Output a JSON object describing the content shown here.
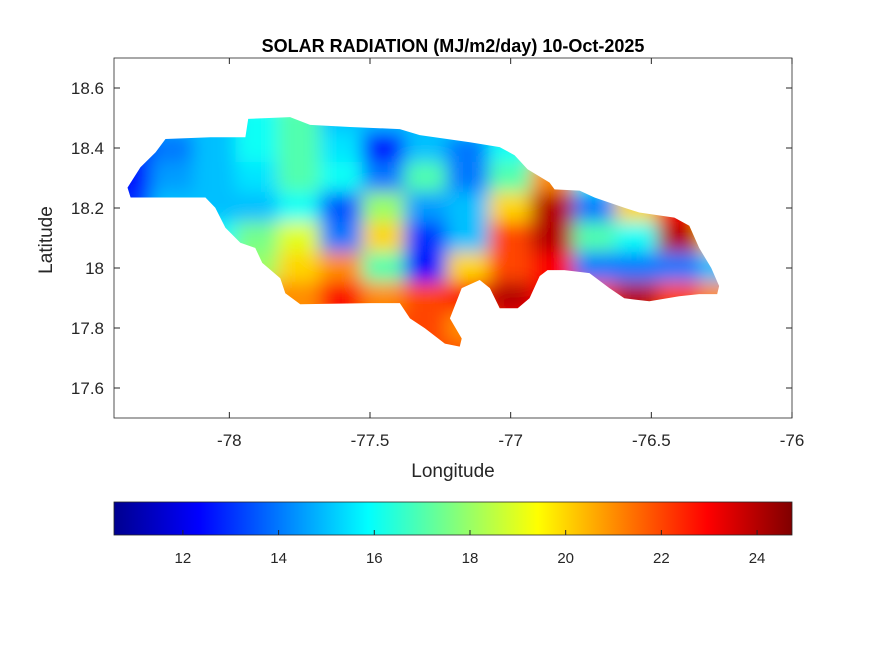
{
  "chart_data": {
    "type": "heatmap",
    "title": "SOLAR RADIATION (MJ/m2/day) 10-Oct-2025",
    "xlabel": "Longitude",
    "ylabel": "Latitude",
    "xlim": [
      -78.41,
      -76.0
    ],
    "ylim": [
      17.5,
      18.7
    ],
    "xticks": [
      -78,
      -77.5,
      -77,
      -76.5,
      -76
    ],
    "xtick_labels": [
      "-78",
      "-77.5",
      "-77",
      "-76.5",
      "-76"
    ],
    "yticks": [
      17.6,
      17.8,
      18.0,
      18.2,
      18.4,
      18.6
    ],
    "ytick_labels": [
      "17.6",
      "17.8",
      "18",
      "18.2",
      "18.4",
      "18.6"
    ],
    "grid": false,
    "colormap": "jet",
    "clim": [
      10.56,
      24.73
    ],
    "colorbar": {
      "location": "bottom",
      "ticks": [
        12,
        14,
        16,
        18,
        20,
        22,
        24
      ],
      "tick_labels": [
        "12",
        "14",
        "16",
        "18",
        "20",
        "22",
        "24"
      ]
    },
    "grid_lon": [
      -78.35,
      -78.2,
      -78.05,
      -77.9,
      -77.75,
      -77.6,
      -77.45,
      -77.3,
      -77.15,
      -77.0,
      -76.85,
      -76.7,
      -76.55,
      -76.4,
      -76.25
    ],
    "grid_lat": [
      18.5,
      18.4,
      18.3,
      18.2,
      18.1,
      18.0,
      17.9,
      17.8,
      17.7
    ],
    "values": [
      [
        15,
        15,
        15,
        16,
        17,
        15,
        15,
        15,
        16,
        16,
        16,
        16,
        16,
        16,
        16
      ],
      [
        13,
        14,
        15,
        16,
        17,
        15.5,
        12.5,
        15,
        14,
        16,
        17,
        16,
        16,
        16,
        16
      ],
      [
        12.5,
        14.5,
        15,
        15.5,
        17,
        16,
        14,
        17,
        14,
        17,
        21,
        16,
        18,
        16,
        16
      ],
      [
        13,
        15,
        15,
        15,
        16,
        13.5,
        18,
        14.5,
        15,
        20,
        24,
        14,
        20,
        23,
        20
      ],
      [
        14,
        15,
        16,
        17.5,
        19,
        14,
        20,
        13,
        15,
        22,
        24,
        17,
        16,
        24,
        20
      ],
      [
        15,
        16,
        17,
        18,
        20,
        21,
        17,
        12.5,
        20,
        22,
        23,
        14,
        14,
        14,
        15
      ],
      [
        17,
        18,
        19,
        21,
        21,
        23,
        21,
        22,
        23,
        24,
        23,
        22,
        24,
        22,
        21
      ],
      [
        21,
        21,
        21,
        21,
        21,
        22,
        22,
        22,
        21,
        23,
        23,
        22,
        22,
        22,
        21
      ],
      [
        21,
        21,
        21,
        21,
        21,
        21,
        21,
        22,
        22,
        22,
        22,
        22,
        22,
        22,
        21
      ]
    ],
    "outline": [
      [
        -78.362,
        18.268
      ],
      [
        -78.316,
        18.336
      ],
      [
        -78.262,
        18.386
      ],
      [
        -78.227,
        18.43
      ],
      [
        -78.067,
        18.436
      ],
      [
        -77.943,
        18.436
      ],
      [
        -77.933,
        18.497
      ],
      [
        -77.784,
        18.503
      ],
      [
        -77.713,
        18.477
      ],
      [
        -77.571,
        18.47
      ],
      [
        -77.394,
        18.463
      ],
      [
        -77.323,
        18.443
      ],
      [
        -77.145,
        18.419
      ],
      [
        -77.039,
        18.403
      ],
      [
        -76.986,
        18.376
      ],
      [
        -76.94,
        18.329
      ],
      [
        -76.862,
        18.285
      ],
      [
        -76.844,
        18.262
      ],
      [
        -76.755,
        18.258
      ],
      [
        -76.702,
        18.235
      ],
      [
        -76.596,
        18.201
      ],
      [
        -76.543,
        18.185
      ],
      [
        -76.418,
        18.168
      ],
      [
        -76.365,
        18.141
      ],
      [
        -76.33,
        18.067
      ],
      [
        -76.287,
        18.0
      ],
      [
        -76.259,
        17.94
      ],
      [
        -76.266,
        17.913
      ],
      [
        -76.33,
        17.913
      ],
      [
        -76.401,
        17.906
      ],
      [
        -76.507,
        17.889
      ],
      [
        -76.596,
        17.899
      ],
      [
        -76.649,
        17.933
      ],
      [
        -76.72,
        17.983
      ],
      [
        -76.809,
        17.993
      ],
      [
        -76.869,
        17.993
      ],
      [
        -76.897,
        17.973
      ],
      [
        -76.933,
        17.899
      ],
      [
        -76.975,
        17.866
      ],
      [
        -77.039,
        17.866
      ],
      [
        -77.074,
        17.933
      ],
      [
        -77.11,
        17.96
      ],
      [
        -77.174,
        17.933
      ],
      [
        -77.216,
        17.832
      ],
      [
        -77.174,
        17.765
      ],
      [
        -77.181,
        17.738
      ],
      [
        -77.234,
        17.748
      ],
      [
        -77.305,
        17.799
      ],
      [
        -77.358,
        17.832
      ],
      [
        -77.394,
        17.883
      ],
      [
        -77.5,
        17.883
      ],
      [
        -77.748,
        17.879
      ],
      [
        -77.801,
        17.916
      ],
      [
        -77.819,
        17.966
      ],
      [
        -77.883,
        18.017
      ],
      [
        -77.908,
        18.067
      ],
      [
        -77.961,
        18.084
      ],
      [
        -78.014,
        18.134
      ],
      [
        -78.05,
        18.201
      ],
      [
        -78.085,
        18.235
      ],
      [
        -78.262,
        18.235
      ],
      [
        -78.351,
        18.235
      ]
    ]
  }
}
